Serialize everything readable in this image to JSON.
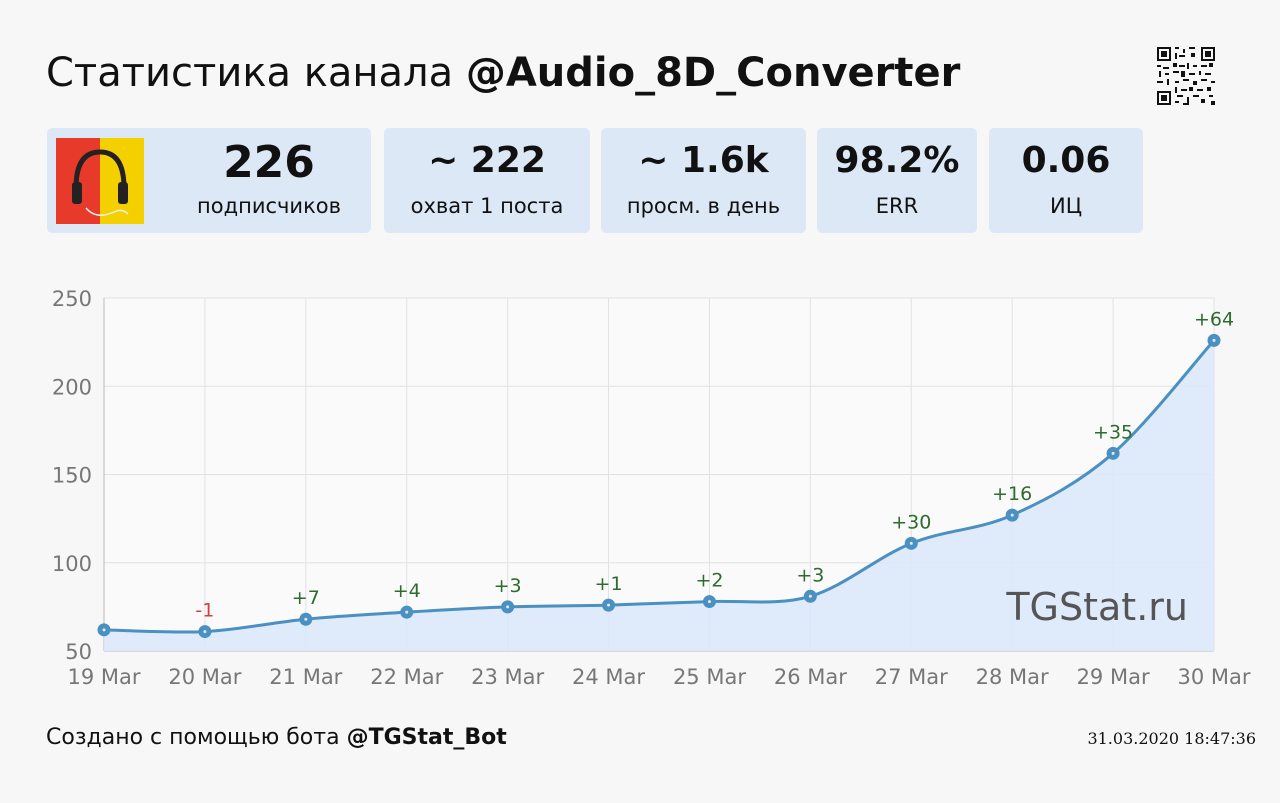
{
  "header": {
    "title_prefix": "Статистика канала ",
    "channel": "@Audio_8D_Converter"
  },
  "stats": {
    "subscribers": {
      "value": "226",
      "label": "подписчиков"
    },
    "reach": {
      "value": "~ 222",
      "label": "охват 1 поста"
    },
    "views": {
      "value": "~ 1.6k",
      "label": "просм. в день"
    },
    "err": {
      "value": "98.2%",
      "label": "ERR"
    },
    "ci": {
      "value": "0.06",
      "label": "ИЦ"
    }
  },
  "footer": {
    "prefix": "Создано с помощью бота ",
    "bot": "@TGStat_Bot",
    "timestamp": "31.03.2020 18:47:36"
  },
  "colors": {
    "card_bg": "#dde8f6",
    "line": "#4a90c0",
    "area": "#dce8fa",
    "positive": "#2e6b2e",
    "negative": "#d04040"
  },
  "chart_data": {
    "type": "area",
    "x": [
      "19 Mar",
      "20 Mar",
      "21 Mar",
      "22 Mar",
      "23 Mar",
      "24 Mar",
      "25 Mar",
      "26 Mar",
      "27 Mar",
      "28 Mar",
      "29 Mar",
      "30 Mar"
    ],
    "series": [
      {
        "values": [
          62,
          61,
          68,
          72,
          75,
          76,
          78,
          81,
          111,
          127,
          162,
          226
        ]
      }
    ],
    "data_labels": [
      "",
      "-1",
      "+7",
      "+4",
      "+3",
      "+1",
      "+2",
      "+3",
      "+30",
      "+16",
      "+35",
      "+64"
    ],
    "yticks": [
      50,
      100,
      150,
      200,
      250
    ],
    "ylim": [
      50,
      250
    ],
    "watermark": "TGStat.ru",
    "grid": true
  }
}
